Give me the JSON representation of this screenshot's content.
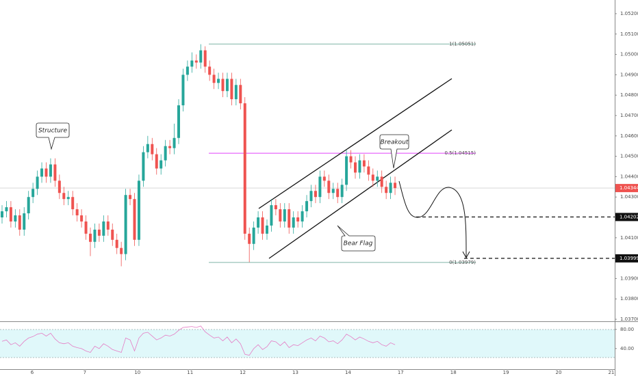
{
  "chart_data": {
    "type": "candlestick",
    "ylim": [
      1.0369,
      1.05267
    ],
    "yticks": [
      {
        "value": 1.037,
        "label": "1.03700"
      },
      {
        "value": 1.038,
        "label": "1.03800"
      },
      {
        "value": 1.039,
        "label": "1.03900"
      },
      {
        "value": 1.04,
        "label": "1.04000"
      },
      {
        "value": 1.041,
        "label": "1.04100"
      },
      {
        "value": 1.042,
        "label": "1.04200"
      },
      {
        "value": 1.043,
        "label": "1.04300"
      },
      {
        "value": 1.044,
        "label": "1.04400"
      },
      {
        "value": 1.045,
        "label": "1.04500"
      },
      {
        "value": 1.046,
        "label": "1.04600"
      },
      {
        "value": 1.047,
        "label": "1.04700"
      },
      {
        "value": 1.048,
        "label": "1.04800"
      },
      {
        "value": 1.049,
        "label": "1.04900"
      },
      {
        "value": 1.05,
        "label": "1.05000"
      },
      {
        "value": 1.051,
        "label": "1.05100"
      },
      {
        "value": 1.052,
        "label": "1.05200"
      }
    ],
    "x_labels": [
      "6",
      "7",
      "10",
      "11",
      "12",
      "13",
      "14",
      "17",
      "18",
      "19",
      "20",
      "21"
    ],
    "up_color": "#26a69a",
    "down_color": "#ef5350",
    "candles": [
      [
        1.042,
        1.0426,
        1.0417,
        1.0423
      ],
      [
        1.0423,
        1.0428,
        1.042,
        1.0425
      ],
      [
        1.0425,
        1.0428,
        1.0415,
        1.0418
      ],
      [
        1.0418,
        1.0424,
        1.0415,
        1.0421
      ],
      [
        1.0421,
        1.0424,
        1.0411,
        1.0414
      ],
      [
        1.0414,
        1.0425,
        1.0411,
        1.0422
      ],
      [
        1.0422,
        1.0433,
        1.0419,
        1.043
      ],
      [
        1.043,
        1.0437,
        1.0427,
        1.0434
      ],
      [
        1.0434,
        1.0443,
        1.0431,
        1.044
      ],
      [
        1.044,
        1.0447,
        1.0437,
        1.0444
      ],
      [
        1.0444,
        1.0447,
        1.0437,
        1.044
      ],
      [
        1.044,
        1.0449,
        1.0437,
        1.0446
      ],
      [
        1.0446,
        1.0449,
        1.0435,
        1.0438
      ],
      [
        1.0438,
        1.0441,
        1.0429,
        1.0432
      ],
      [
        1.0432,
        1.0435,
        1.0426,
        1.0429
      ],
      [
        1.0429,
        1.0433,
        1.0426,
        1.043
      ],
      [
        1.043,
        1.0433,
        1.0421,
        1.0424
      ],
      [
        1.0424,
        1.0427,
        1.0418,
        1.0421
      ],
      [
        1.0421,
        1.0424,
        1.0415,
        1.0418
      ],
      [
        1.0418,
        1.0421,
        1.0409,
        1.0412
      ],
      [
        1.0412,
        1.0415,
        1.0401,
        1.0408
      ],
      [
        1.0408,
        1.0417,
        1.0405,
        1.0414
      ],
      [
        1.0414,
        1.0417,
        1.0408,
        1.0411
      ],
      [
        1.0411,
        1.0421,
        1.0408,
        1.0418
      ],
      [
        1.0418,
        1.0421,
        1.0411,
        1.0414
      ],
      [
        1.0414,
        1.0417,
        1.0406,
        1.0409
      ],
      [
        1.0409,
        1.0412,
        1.0402,
        1.0405
      ],
      [
        1.0405,
        1.0408,
        1.0396,
        1.0402
      ],
      [
        1.0402,
        1.0434,
        1.0399,
        1.0431
      ],
      [
        1.0431,
        1.0434,
        1.0426,
        1.0429
      ],
      [
        1.0429,
        1.0432,
        1.0406,
        1.0409
      ],
      [
        1.0409,
        1.0441,
        1.0406,
        1.0438
      ],
      [
        1.0438,
        1.0455,
        1.0435,
        1.0452
      ],
      [
        1.0452,
        1.046,
        1.0449,
        1.0456
      ],
      [
        1.0456,
        1.0459,
        1.0448,
        1.0451
      ],
      [
        1.0451,
        1.0454,
        1.0441,
        1.0444
      ],
      [
        1.0444,
        1.0451,
        1.0441,
        1.0448
      ],
      [
        1.0448,
        1.0458,
        1.0445,
        1.0455
      ],
      [
        1.0455,
        1.0458,
        1.0451,
        1.0454
      ],
      [
        1.0454,
        1.0466,
        1.0451,
        1.0459
      ],
      [
        1.0459,
        1.0478,
        1.0456,
        1.0475
      ],
      [
        1.0475,
        1.0493,
        1.0472,
        1.049
      ],
      [
        1.049,
        1.0497,
        1.0487,
        1.0494
      ],
      [
        1.0494,
        1.0501,
        1.0491,
        1.0497
      ],
      [
        1.0497,
        1.05,
        1.0493,
        1.0496
      ],
      [
        1.0496,
        1.0505,
        1.0493,
        1.0502
      ],
      [
        1.0502,
        1.0504,
        1.0491,
        1.0494
      ],
      [
        1.0494,
        1.0497,
        1.0487,
        1.049
      ],
      [
        1.049,
        1.0493,
        1.0483,
        1.0486
      ],
      [
        1.0486,
        1.0491,
        1.0483,
        1.0488
      ],
      [
        1.0488,
        1.0491,
        1.0479,
        1.0482
      ],
      [
        1.0482,
        1.0491,
        1.0479,
        1.0488
      ],
      [
        1.0488,
        1.0491,
        1.0475,
        1.0478
      ],
      [
        1.0478,
        1.0488,
        1.0475,
        1.0485
      ],
      [
        1.0485,
        1.0488,
        1.0473,
        1.0476
      ],
      [
        1.0476,
        1.0479,
        1.0409,
        1.0412
      ],
      [
        1.0412,
        1.0415,
        1.0398,
        1.0407
      ],
      [
        1.0407,
        1.0418,
        1.0404,
        1.0415
      ],
      [
        1.0415,
        1.0423,
        1.0412,
        1.042
      ],
      [
        1.042,
        1.0423,
        1.0409,
        1.0412
      ],
      [
        1.0412,
        1.0419,
        1.0409,
        1.0416
      ],
      [
        1.0416,
        1.0429,
        1.0413,
        1.0426
      ],
      [
        1.0426,
        1.0429,
        1.0421,
        1.0424
      ],
      [
        1.0424,
        1.0427,
        1.0415,
        1.0418
      ],
      [
        1.0418,
        1.0427,
        1.0415,
        1.0424
      ],
      [
        1.0424,
        1.0427,
        1.0412,
        1.0415
      ],
      [
        1.0415,
        1.0423,
        1.0412,
        1.042
      ],
      [
        1.042,
        1.0423,
        1.0415,
        1.0418
      ],
      [
        1.0418,
        1.0426,
        1.0415,
        1.0423
      ],
      [
        1.0423,
        1.0431,
        1.042,
        1.0428
      ],
      [
        1.0428,
        1.0436,
        1.0425,
        1.0433
      ],
      [
        1.0433,
        1.0436,
        1.0427,
        1.043
      ],
      [
        1.043,
        1.0443,
        1.0427,
        1.044
      ],
      [
        1.044,
        1.0443,
        1.0435,
        1.0438
      ],
      [
        1.0438,
        1.0441,
        1.0429,
        1.0432
      ],
      [
        1.0432,
        1.0437,
        1.0429,
        1.0434
      ],
      [
        1.0434,
        1.0437,
        1.0427,
        1.043
      ],
      [
        1.043,
        1.0439,
        1.0427,
        1.0436
      ],
      [
        1.0436,
        1.0453,
        1.0433,
        1.045
      ],
      [
        1.045,
        1.0453,
        1.0444,
        1.0447
      ],
      [
        1.0447,
        1.045,
        1.0439,
        1.0442
      ],
      [
        1.0442,
        1.0451,
        1.0439,
        1.0448
      ],
      [
        1.0448,
        1.0451,
        1.0442,
        1.0445
      ],
      [
        1.0445,
        1.0448,
        1.0438,
        1.0441
      ],
      [
        1.0441,
        1.0444,
        1.0435,
        1.0438
      ],
      [
        1.0438,
        1.0443,
        1.0435,
        1.044
      ],
      [
        1.044,
        1.0443,
        1.0432,
        1.0435
      ],
      [
        1.0435,
        1.0438,
        1.0429,
        1.0432
      ],
      [
        1.0432,
        1.044,
        1.0429,
        1.0437
      ],
      [
        1.0437,
        1.044,
        1.0431,
        1.04344
      ]
    ],
    "fib_levels": [
      {
        "value": 1.05051,
        "label": "1(1.05051)",
        "color": "#7fb5a6"
      },
      {
        "value": 1.04515,
        "label": "0.5(1.04515)",
        "color": "#e040fb"
      },
      {
        "value": 1.03979,
        "label": "0(1.03979)",
        "color": "#7fb5a6"
      }
    ],
    "target_levels": [
      1.04202,
      1.03999
    ],
    "annotations": [
      "Structure",
      "Breakout",
      "Bear Flag"
    ],
    "rsi": {
      "ylim": [
        -3,
        94
      ],
      "yticks": [
        {
          "value": 80,
          "label": "80.00"
        },
        {
          "value": 40,
          "label": "40.00"
        }
      ],
      "color": "#e57bc4",
      "values": [
        55,
        58,
        48,
        52,
        45,
        55,
        62,
        65,
        70,
        72,
        66,
        72,
        60,
        52,
        50,
        52,
        45,
        42,
        40,
        35,
        32,
        45,
        40,
        50,
        45,
        38,
        35,
        32,
        62,
        58,
        35,
        62,
        72,
        74,
        66,
        58,
        62,
        68,
        66,
        70,
        78,
        84,
        85,
        86,
        84,
        87,
        75,
        68,
        62,
        64,
        56,
        64,
        52,
        60,
        50,
        28,
        26,
        40,
        48,
        38,
        44,
        56,
        54,
        46,
        54,
        42,
        48,
        46,
        52,
        58,
        62,
        56,
        66,
        62,
        54,
        56,
        50,
        58,
        70,
        65,
        58,
        64,
        60,
        55,
        52,
        55,
        48,
        45,
        52,
        48
      ]
    }
  }
}
